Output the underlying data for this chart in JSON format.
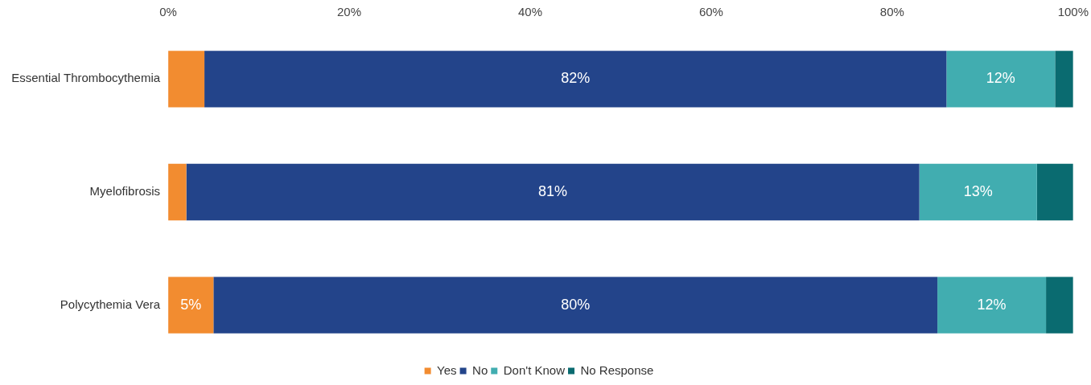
{
  "chart_data": {
    "type": "bar",
    "orientation": "horizontal",
    "stacked": true,
    "categories": [
      "Essential Thrombocythemia",
      "Myelofibrosis",
      "Polycythemia Vera"
    ],
    "series": [
      {
        "name": "Yes",
        "color": "#f28c30",
        "values": [
          4,
          2,
          5
        ],
        "value_labels": [
          null,
          null,
          "5%"
        ]
      },
      {
        "name": "No",
        "color": "#23448a",
        "values": [
          82,
          81,
          80
        ],
        "value_labels": [
          "82%",
          "81%",
          "80%"
        ]
      },
      {
        "name": "Don't Know",
        "color": "#41adb0",
        "values": [
          12,
          13,
          12
        ],
        "value_labels": [
          "12%",
          "13%",
          "12%"
        ]
      },
      {
        "name": "No Response",
        "color": "#0a6b70",
        "values": [
          2,
          4,
          3
        ],
        "value_labels": [
          null,
          null,
          null
        ]
      }
    ],
    "xlim": [
      0,
      100
    ],
    "xticks": [
      {
        "value": 0,
        "label": "0%"
      },
      {
        "value": 20,
        "label": "20%"
      },
      {
        "value": 40,
        "label": "40%"
      },
      {
        "value": 60,
        "label": "60%"
      },
      {
        "value": 80,
        "label": "80%"
      },
      {
        "value": 100,
        "label": "100%"
      }
    ],
    "grid": false,
    "legend": "bottom"
  }
}
